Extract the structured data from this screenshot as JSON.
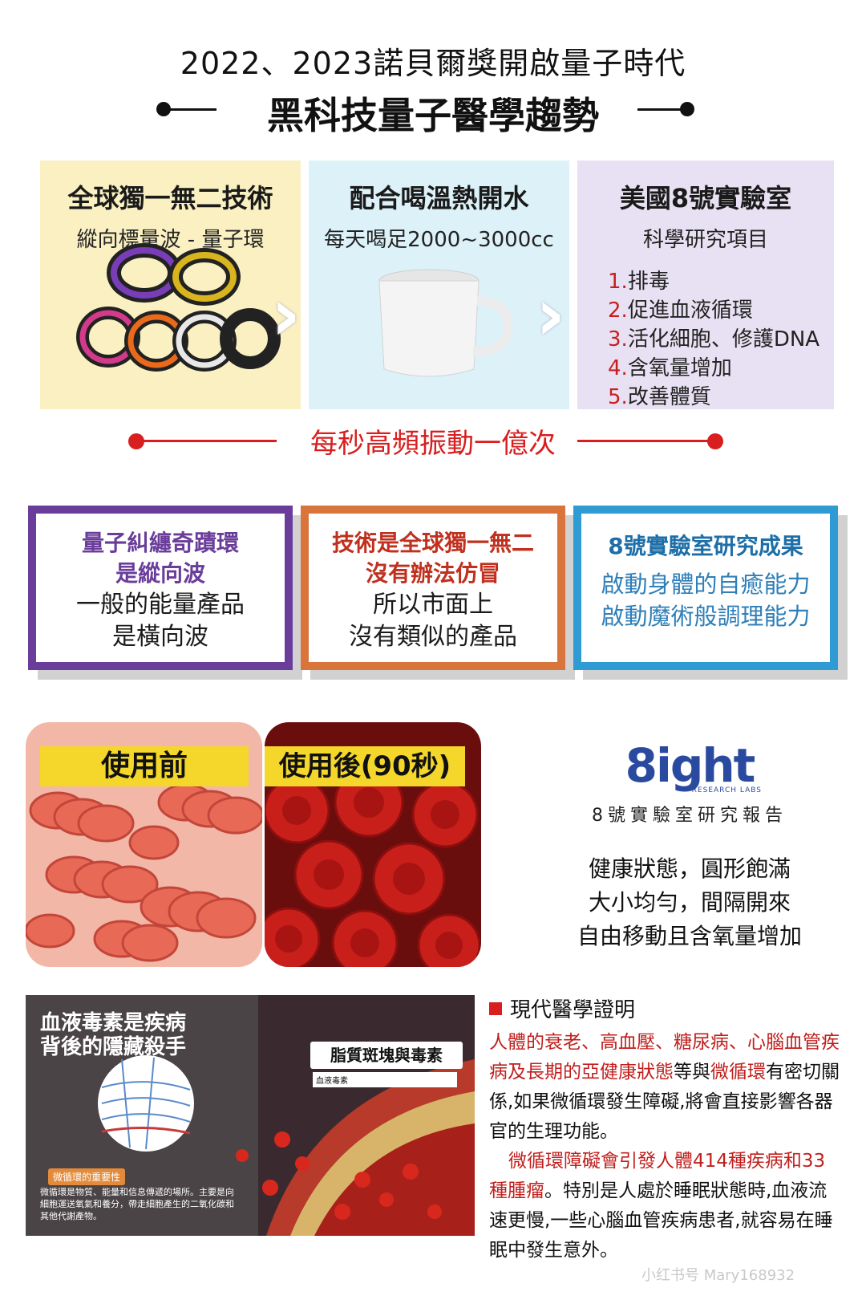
{
  "header": {
    "title": "2022、2023諾貝爾獎開啟量子時代",
    "headline": "黑科技量子醫學趨勢"
  },
  "panels": [
    {
      "title": "全球獨一無二技術",
      "subtitle": "縱向標量波 - 量子環"
    },
    {
      "title": "配合喝溫熱開水",
      "subtitle": "每天喝足2000~3000cc"
    },
    {
      "title": "美國8號實驗室",
      "subtitle": "科學研究項目",
      "items": [
        {
          "num": "1.",
          "text": "排毒"
        },
        {
          "num": "2.",
          "text": "促進血液循環"
        },
        {
          "num": "3.",
          "text": "活化細胞、修護DNA"
        },
        {
          "num": "4.",
          "text": "含氧量增加"
        },
        {
          "num": "5.",
          "text": "改善體質"
        }
      ]
    }
  ],
  "frequency": "每秒高頻振動一億次",
  "boxes": [
    {
      "head1": "量子糾纏奇蹟環",
      "head2": "是縱向波",
      "body1": "一般的能量產品",
      "body2": "是橫向波"
    },
    {
      "head1": "技術是全球獨一無二",
      "head2": "沒有辦法仿冒",
      "body1": "所以市面上",
      "body2": "沒有類似的產品"
    },
    {
      "head1": "8號實驗室研究成果",
      "body1": "啟動身體的自癒能力",
      "body2": "啟動魔術般調理能力"
    }
  ],
  "microscopy": {
    "before_label": "使用前",
    "after_label": "使用後(90秒)"
  },
  "brand": {
    "logo": "8ight",
    "logo_sub": "RESEARCH LABS",
    "report": "8號實驗室研究報告",
    "healthy": [
      "健康狀態，圓形飽滿",
      "大小均勻，間隔開來",
      "自由移動且含氧量增加"
    ]
  },
  "toxin_image": {
    "title1": "血液毒素是疾病",
    "title2": "背後的隱藏殺手",
    "plaque": "脂質斑塊與毒素",
    "blood_toxin": "血液毒素",
    "micro_circ_tag": "微循環的重要性",
    "micro_circ_desc": "微循環是物質、能量和信息傳遞的場所。主要是向細胞運送氧氣和養分，帶走細胞產生的二氧化碳和其他代謝產物。"
  },
  "medical": {
    "heading": "現代醫學證明",
    "p1_red": "人體的衰老、高血壓、糖尿病、心腦血管疾病及長期的亞健康狀態",
    "p1_mid": "等與",
    "p1_red2": "微循環",
    "p1_rest": "有密切關係,如果微循環發生障礙,將會直接影響各器官的生理功能。",
    "p2_red": "微循環障礙會引發人體414種疾病和33種腫瘤",
    "p2_rest": "。特別是人處於睡眠狀態時,血液流速更慢,一些心腦血管疾病患者,就容易在睡眠中發生意外。"
  },
  "watermark": "小红书号 Mary168932",
  "colors": {
    "accent_red": "#d81e1e",
    "purple": "#6a3d9a",
    "orange": "#d9753a",
    "blue": "#2f9bd4"
  }
}
